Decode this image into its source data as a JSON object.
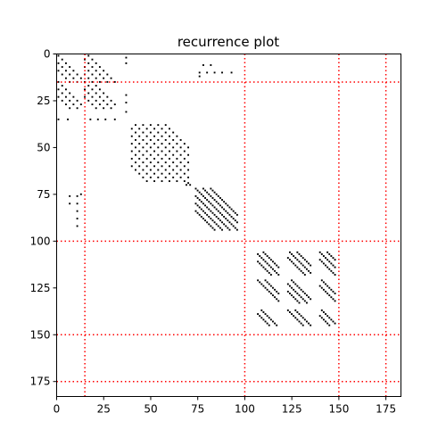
{
  "chart_data": {
    "type": "heatmap",
    "title": "recurrence plot",
    "xlabel": "",
    "ylabel": "",
    "n": 183,
    "xlim": [
      0,
      183
    ],
    "ylim": [
      183,
      0
    ],
    "xticks": [
      0,
      25,
      50,
      75,
      100,
      125,
      150,
      175
    ],
    "yticks": [
      0,
      25,
      50,
      75,
      100,
      125,
      150,
      175
    ],
    "point_color": "#000000",
    "boundary_color": "#ff0000",
    "boundaries": [
      15,
      100,
      150,
      175
    ],
    "blocks": [
      {
        "x0": 1,
        "x1": 13,
        "y0": 1,
        "y1": 15,
        "diagonals": [
          0,
          4,
          8
        ],
        "step": 2
      },
      {
        "x0": 15,
        "x1": 31,
        "y0": 0,
        "y1": 15,
        "diagonals": [
          -16,
          -12,
          -8,
          -4
        ],
        "step": 2
      },
      {
        "x0": 1,
        "x1": 13,
        "y0": 15,
        "y1": 29,
        "diagonals": [
          14,
          18,
          22
        ],
        "step": 2
      },
      {
        "x0": 15,
        "x1": 31,
        "y0": 15,
        "y1": 29,
        "diagonals": [
          -4,
          0,
          4,
          8
        ],
        "step": 2
      },
      {
        "x0": 40,
        "x1": 70,
        "y0": 38,
        "y1": 68,
        "diagonals": [
          -20,
          -16,
          -12,
          -8,
          -4,
          0,
          4,
          8,
          12,
          16,
          20
        ],
        "step": 2
      },
      {
        "x0": 74,
        "x1": 96,
        "y0": 72,
        "y1": 94,
        "diagonals": [
          -10,
          -6,
          -2,
          2,
          6,
          10
        ],
        "step": 1
      },
      {
        "x0": 107,
        "x1": 118,
        "y0": 106,
        "y1": 118,
        "diagonals": [
          -4,
          0,
          4
        ],
        "step": 1
      },
      {
        "x0": 123,
        "x1": 135,
        "y0": 106,
        "y1": 118,
        "diagonals": [
          -22,
          -18,
          -14
        ],
        "step": 1
      },
      {
        "x0": 140,
        "x1": 148,
        "y0": 106,
        "y1": 118,
        "diagonals": [
          -38,
          -34,
          -30
        ],
        "step": 1
      },
      {
        "x0": 107,
        "x1": 118,
        "y0": 121,
        "y1": 133,
        "diagonals": [
          10,
          14
        ],
        "step": 1
      },
      {
        "x0": 123,
        "x1": 135,
        "y0": 121,
        "y1": 133,
        "diagonals": [
          -4,
          0,
          4
        ],
        "step": 1
      },
      {
        "x0": 140,
        "x1": 148,
        "y0": 121,
        "y1": 133,
        "diagonals": [
          -20,
          -16
        ],
        "step": 1
      },
      {
        "x0": 107,
        "x1": 118,
        "y0": 137,
        "y1": 145,
        "diagonals": [
          28,
          32
        ],
        "step": 1
      },
      {
        "x0": 123,
        "x1": 135,
        "y0": 137,
        "y1": 145,
        "diagonals": [
          10,
          14
        ],
        "step": 1
      },
      {
        "x0": 140,
        "x1": 148,
        "y0": 137,
        "y1": 145,
        "diagonals": [
          -4,
          0
        ],
        "step": 1
      }
    ],
    "extra_points": [
      [
        37,
        2
      ],
      [
        37,
        5
      ],
      [
        37,
        22
      ],
      [
        37,
        26
      ],
      [
        37,
        31
      ],
      [
        1,
        35
      ],
      [
        6,
        35
      ],
      [
        18,
        35
      ],
      [
        22,
        35
      ],
      [
        26,
        35
      ],
      [
        31,
        35
      ],
      [
        76,
        10
      ],
      [
        80,
        10
      ],
      [
        84,
        10
      ],
      [
        88,
        10
      ],
      [
        93,
        10
      ],
      [
        78,
        6
      ],
      [
        82,
        6
      ],
      [
        76,
        12
      ],
      [
        7,
        76
      ],
      [
        11,
        76
      ],
      [
        13,
        75
      ],
      [
        7,
        80
      ],
      [
        11,
        80
      ],
      [
        11,
        84
      ],
      [
        11,
        88
      ],
      [
        11,
        92
      ],
      [
        69,
        70
      ],
      [
        70,
        69
      ],
      [
        71,
        70
      ]
    ]
  }
}
